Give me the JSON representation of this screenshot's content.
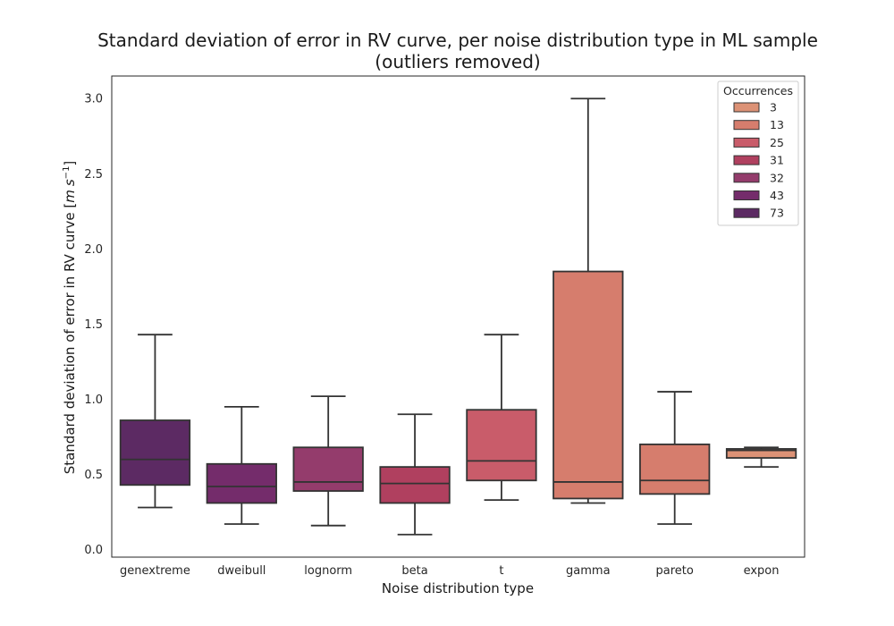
{
  "chart_data": {
    "type": "box",
    "title_line1": "Standard deviation of error in RV curve, per noise distribution type in ML sample",
    "title_line2": "(outliers removed)",
    "xlabel": "Noise distribution type",
    "ylabel_text": "Standard deviation of error in RV curve ",
    "ylabel_unit_open": "[",
    "ylabel_unit_m": "m",
    "ylabel_unit_s": "s",
    "ylabel_unit_exp": "−1",
    "ylabel_unit_close": "]",
    "ylim": [
      -0.05,
      3.15
    ],
    "yticks": [
      0.0,
      0.5,
      1.0,
      1.5,
      2.0,
      2.5,
      3.0
    ],
    "ytick_labels": [
      "0.0",
      "0.5",
      "1.0",
      "1.5",
      "2.0",
      "2.5",
      "3.0"
    ],
    "grid": false,
    "categories": [
      "genextreme",
      "dweibull",
      "lognorm",
      "beta",
      "t",
      "gamma",
      "pareto",
      "expon"
    ],
    "boxes": [
      {
        "category": "genextreme",
        "whisker_low": 0.28,
        "q1": 0.43,
        "median": 0.6,
        "q3": 0.86,
        "whisker_high": 1.43,
        "occurrences": 73,
        "color": "#5c2a63"
      },
      {
        "category": "dweibull",
        "whisker_low": 0.17,
        "q1": 0.31,
        "median": 0.42,
        "q3": 0.57,
        "whisker_high": 0.95,
        "occurrences": 43,
        "color": "#742c6b"
      },
      {
        "category": "lognorm",
        "whisker_low": 0.16,
        "q1": 0.39,
        "median": 0.45,
        "q3": 0.68,
        "whisker_high": 1.02,
        "occurrences": 32,
        "color": "#943c6c"
      },
      {
        "category": "beta",
        "whisker_low": 0.1,
        "q1": 0.31,
        "median": 0.44,
        "q3": 0.55,
        "whisker_high": 0.9,
        "occurrences": 31,
        "color": "#b0405f"
      },
      {
        "category": "t",
        "whisker_low": 0.33,
        "q1": 0.46,
        "median": 0.59,
        "q3": 0.93,
        "whisker_high": 1.43,
        "occurrences": 25,
        "color": "#c95c6a"
      },
      {
        "category": "gamma",
        "whisker_low": 0.31,
        "q1": 0.34,
        "median": 0.45,
        "q3": 1.85,
        "whisker_high": 3.0,
        "occurrences": 13,
        "color": "#d67d6d"
      },
      {
        "category": "pareto",
        "whisker_low": 0.17,
        "q1": 0.37,
        "median": 0.46,
        "q3": 0.7,
        "whisker_high": 1.05,
        "occurrences": 13,
        "color": "#d67d6d"
      },
      {
        "category": "expon",
        "whisker_low": 0.55,
        "q1": 0.61,
        "median": 0.66,
        "q3": 0.67,
        "whisker_high": 0.68,
        "occurrences": 3,
        "color": "#dc9276"
      }
    ],
    "legend": {
      "title": "Occurrences",
      "placement": "top-right",
      "entries": [
        {
          "label": "3",
          "color": "#dc9276"
        },
        {
          "label": "13",
          "color": "#d67d6d"
        },
        {
          "label": "25",
          "color": "#c95c6a"
        },
        {
          "label": "31",
          "color": "#b0405f"
        },
        {
          "label": "32",
          "color": "#943c6c"
        },
        {
          "label": "43",
          "color": "#742c6b"
        },
        {
          "label": "73",
          "color": "#5c2a63"
        }
      ]
    }
  }
}
